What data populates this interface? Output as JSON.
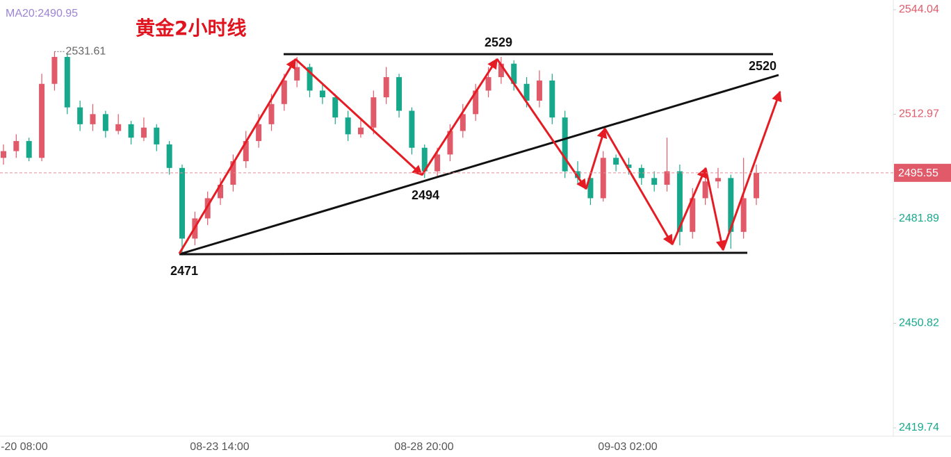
{
  "chart_data": {
    "type": "candlestick",
    "title": "黄金2小时线",
    "indicator_label": "MA20:2490.95",
    "up_color": "#e05a69",
    "down_color": "#17a88c",
    "open": [
      2500,
      2502,
      2505,
      2500,
      2522,
      2530,
      2515,
      2510,
      2513,
      2508,
      2510,
      2506,
      2509,
      2504,
      2497,
      2476,
      2482,
      2488,
      2492,
      2499,
      2505,
      2510,
      2516,
      2523,
      2527,
      2520,
      2518,
      2512,
      2507,
      2509,
      2518,
      2524,
      2514,
      2503,
      2496,
      2501,
      2508,
      2513,
      2520,
      2524,
      2528,
      2522,
      2517,
      2523,
      2512,
      2496,
      2494,
      2488,
      2500,
      2498,
      2497,
      2494,
      2492,
      2496,
      2478,
      2488,
      2493,
      2494,
      2478,
      2488
    ],
    "high": [
      2504,
      2507,
      2506,
      2525,
      2531.61,
      2531,
      2517,
      2516,
      2514,
      2513,
      2511,
      2512,
      2510,
      2505,
      2498,
      2484,
      2490,
      2494,
      2501,
      2508,
      2513,
      2519,
      2525,
      2530,
      2528,
      2522,
      2519,
      2514,
      2512,
      2520,
      2527,
      2525,
      2515,
      2504,
      2503,
      2510,
      2516,
      2522,
      2527,
      2530,
      2529,
      2524,
      2526,
      2525,
      2514,
      2499,
      2495,
      2502,
      2501,
      2500,
      2498,
      2496,
      2506,
      2498,
      2491,
      2496,
      2497,
      2495,
      2500,
      2498
    ],
    "low": [
      2498,
      2500,
      2499,
      2499,
      2520,
      2513,
      2508,
      2508,
      2506,
      2507,
      2504,
      2505,
      2502,
      2495,
      2471,
      2474,
      2480,
      2486,
      2490,
      2497,
      2503,
      2508,
      2514,
      2521,
      2518,
      2516,
      2510,
      2505,
      2506,
      2507,
      2516,
      2512,
      2501,
      2494,
      2494,
      2499,
      2506,
      2511,
      2518,
      2522,
      2520,
      2515,
      2515,
      2510,
      2494,
      2492,
      2486,
      2487,
      2496,
      2495,
      2492,
      2490,
      2490,
      2474,
      2476,
      2486,
      2491,
      2473,
      2476,
      2486
    ],
    "close": [
      2502,
      2505,
      2500,
      2522,
      2530,
      2515,
      2510,
      2513,
      2508,
      2510,
      2506,
      2509,
      2504,
      2497,
      2476,
      2482,
      2488,
      2492,
      2499,
      2505,
      2510,
      2516,
      2523,
      2527,
      2520,
      2518,
      2512,
      2507,
      2509,
      2518,
      2524,
      2514,
      2503,
      2496,
      2501,
      2508,
      2513,
      2520,
      2524,
      2528,
      2522,
      2517,
      2523,
      2512,
      2496,
      2494,
      2488,
      2500,
      2498,
      2497,
      2494,
      2492,
      2496,
      2478,
      2488,
      2493,
      2494,
      2478,
      2488,
      2495.55
    ],
    "x_labels": [
      "-20 08:00",
      "08-23 14:00",
      "08-28 20:00",
      "09-03 02:00"
    ],
    "ylim": [
      2417.26,
      2546.93
    ],
    "yticks": [
      2544.04,
      2512.97,
      2481.89,
      2450.82,
      2419.74
    ],
    "annotations": [
      "2471",
      "2494",
      "2529",
      "2520"
    ]
  }
}
